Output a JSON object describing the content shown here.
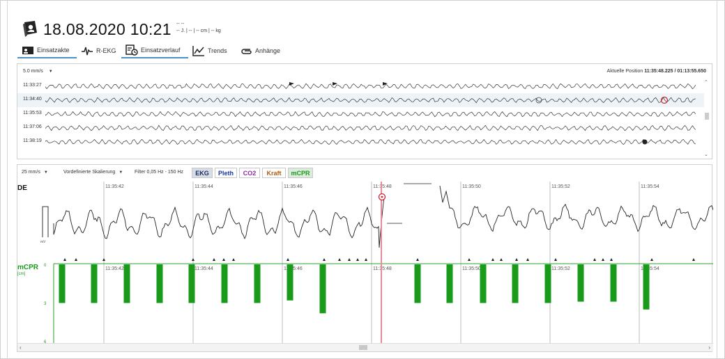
{
  "header": {
    "title": "18.08.2020 10:21",
    "patient_line1": "-- --",
    "patient_line2": "-- J. | -- | -- cm | -- kg"
  },
  "tabs": [
    {
      "label": "Einsatzakte",
      "icon": "patient-card-icon"
    },
    {
      "label": "R-EKG",
      "icon": "ekg-wave-icon"
    },
    {
      "label": "Einsatzverlauf",
      "icon": "timeline-clock-icon"
    },
    {
      "label": "Trends",
      "icon": "trend-chart-icon"
    },
    {
      "label": "Anhänge",
      "icon": "paperclip-icon"
    }
  ],
  "overview": {
    "speed": "5.0 mm/s",
    "position_label": "Aktuelle Position",
    "position_value": "11:35:48.225 / 01:13:55.650",
    "rows": [
      {
        "time": "11:33:27"
      },
      {
        "time": "11:34:40"
      },
      {
        "time": "11:35:53"
      },
      {
        "time": "11:37:06"
      },
      {
        "time": "11:38:19"
      }
    ]
  },
  "main": {
    "speed": "25 mm/s",
    "scaling": "Vordefinierte Skalierung",
    "filter": "Filter 0,05 Hz - 150 Hz",
    "channels": {
      "ekg": "EKG",
      "pleth": "Pleth",
      "co2": "CO2",
      "kraft": "Kraft",
      "mcpr": "mCPR"
    },
    "channel_colors": {
      "ekg": "#1a2a5a",
      "pleth": "#1a3aa0",
      "co2": "#8a2aa0",
      "kraft": "#b05a10",
      "mcpr": "#1a9a1a"
    },
    "de_label": "DE",
    "mv_label": "mV",
    "mcpr_label": "mCPR",
    "mcpr_unit": "[cm]",
    "mcpr_scale": [
      "0",
      "3",
      "6"
    ],
    "time_marks": [
      "11:35:42",
      "11:35:44",
      "11:35:46",
      "11:35:48",
      "11:35:50",
      "11:35:52",
      "11:35:54"
    ],
    "compression_depths_cm": [
      3.0,
      3.0,
      3.0,
      3.0,
      3.0,
      3.0,
      3.0,
      2.8,
      3.8,
      3.0,
      3.0,
      3.0,
      3.0,
      3.0,
      2.9,
      2.9,
      3.5
    ]
  }
}
